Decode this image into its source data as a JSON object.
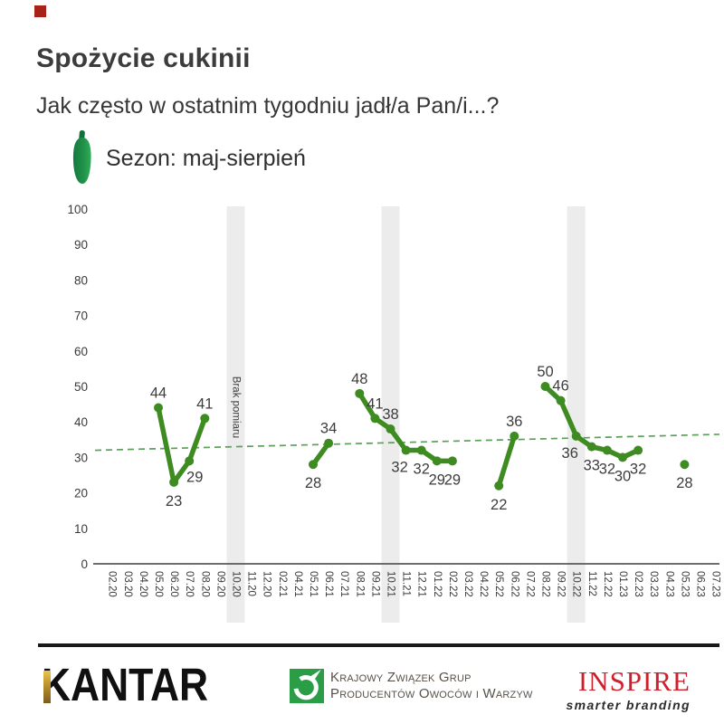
{
  "header": {
    "title": "Spożycie cukinii",
    "subtitle": "Jak często w ostatnim tygodniu jadł/a Pan/i...?",
    "legend_label": "Sezon: maj-sierpień"
  },
  "chart_data": {
    "type": "line",
    "title": "Spożycie cukinii",
    "question": "Jak często w ostatnim tygodniu jadł/a Pan/i...?",
    "ylim": [
      0,
      100
    ],
    "y_ticks": [
      0,
      10,
      20,
      30,
      40,
      50,
      60,
      70,
      80,
      90,
      100
    ],
    "grid": false,
    "legend_position": "top-left",
    "categories": [
      "02.20",
      "03.20",
      "04.20",
      "05.20",
      "06.20",
      "07.20",
      "08.20",
      "09.20",
      "10.20",
      "11.20",
      "12.20",
      "02.21",
      "04.21",
      "05.21",
      "06.21",
      "07.21",
      "08.21",
      "09.21",
      "10.21",
      "11.21",
      "12.21",
      "01.22",
      "02.22",
      "03.22",
      "04.22",
      "05.22",
      "06.22",
      "07.22",
      "08.22",
      "09.22",
      "10.22",
      "11.22",
      "12.22",
      "01.23",
      "02.23",
      "03.23",
      "04.23",
      "05.23",
      "06.23",
      "07.23"
    ],
    "series": [
      {
        "name": "Sezon: maj-sierpień",
        "color": "#3e8c21",
        "segments": [
          [
            {
              "x": "05.20",
              "y": 44,
              "label_pos": "above"
            },
            {
              "x": "06.20",
              "y": 23,
              "label_pos": "below"
            },
            {
              "x": "07.20",
              "y": 29,
              "label_pos": "right"
            },
            {
              "x": "08.20",
              "y": 41,
              "label_pos": "above"
            }
          ],
          [
            {
              "x": "05.21",
              "y": 28,
              "label_pos": "below"
            },
            {
              "x": "06.21",
              "y": 34,
              "label_pos": "above"
            }
          ],
          [
            {
              "x": "08.21",
              "y": 48,
              "label_pos": "above"
            },
            {
              "x": "09.21",
              "y": 41,
              "label_pos": "above"
            },
            {
              "x": "10.21",
              "y": 38,
              "label_pos": "above"
            },
            {
              "x": "11.21",
              "y": 32,
              "label_pos": "below-left"
            },
            {
              "x": "12.21",
              "y": 32,
              "label_pos": "below"
            },
            {
              "x": "01.22",
              "y": 29,
              "label_pos": "below"
            },
            {
              "x": "02.22",
              "y": 29,
              "label_pos": "below"
            }
          ],
          [
            {
              "x": "05.22",
              "y": 22,
              "label_pos": "below"
            },
            {
              "x": "06.22",
              "y": 36,
              "label_pos": "above"
            }
          ],
          [
            {
              "x": "08.22",
              "y": 50,
              "label_pos": "above"
            },
            {
              "x": "09.22",
              "y": 46,
              "label_pos": "above"
            },
            {
              "x": "10.22",
              "y": 36,
              "label_pos": "below-left"
            },
            {
              "x": "11.22",
              "y": 33,
              "label_pos": "below"
            },
            {
              "x": "12.22",
              "y": 32,
              "label_pos": "below"
            },
            {
              "x": "01.23",
              "y": 30,
              "label_pos": "below"
            },
            {
              "x": "02.23",
              "y": 32,
              "label_pos": "below"
            }
          ],
          [
            {
              "x": "05.23",
              "y": 28,
              "label_pos": "below"
            }
          ]
        ]
      }
    ],
    "trend_line": {
      "style": "dashed",
      "color": "#57a257",
      "start_value": 32,
      "end_value": 36.5
    },
    "no_data_bands": [
      {
        "category": "10.20",
        "label": "Brak pomiaru"
      },
      {
        "category": "10.21",
        "label": ""
      },
      {
        "category": "10.22",
        "label": ""
      }
    ],
    "colors": {
      "band": "#ececec",
      "axis": "#595959",
      "tick_text": "#3a3a3a",
      "value_label": "#3d3d3d"
    }
  },
  "footer": {
    "kantar_logo": "KANTAR",
    "kzg_line1": "Krajowy Związek Grup",
    "kzg_line2": "Producentów Owoców i Warzyw",
    "inspire_logo": "INSPIRE",
    "inspire_tagline": "smarter branding",
    "colors": {
      "inspire_red": "#cf1f2c",
      "kantar_gold": "#b9912f",
      "kzg_green": "#2b9d47"
    }
  }
}
